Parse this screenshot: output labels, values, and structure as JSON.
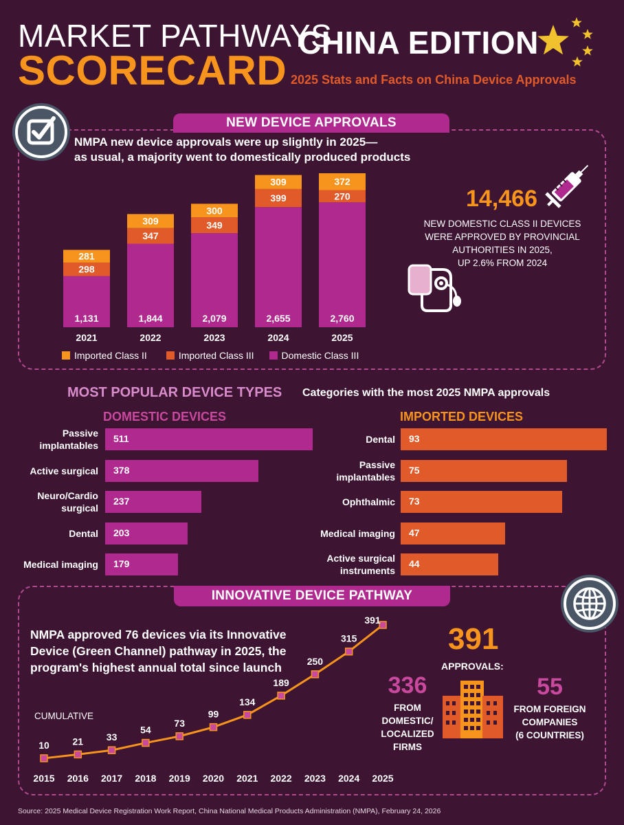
{
  "header": {
    "title_line1": "MARKET PATHWAYS",
    "title_line2": "SCORECARD",
    "edition": "CHINA EDITION",
    "subtitle": "2025 Stats and Facts on China Device Approvals"
  },
  "approvals_section": {
    "banner": "NEW DEVICE APPROVALS",
    "lead_line1": "NMPA new device approvals were up slightly in 2025—",
    "lead_line2": "as usual, a majority went to domestically produced products",
    "stat_value": "14,466",
    "stat_line1": "NEW DOMESTIC CLASS II DEVICES",
    "stat_line2": "WERE APPROVED BY PROVINCIAL",
    "stat_line3": "AUTHORITIES IN 2025,",
    "stat_line4": "UP 2.6% FROM 2024",
    "legend": [
      "Imported Class II",
      "Imported Class III",
      "Domestic Class III"
    ]
  },
  "popular_section": {
    "title": "MOST POPULAR DEVICE TYPES",
    "subtitle": "Categories with the most 2025 NMPA approvals",
    "domestic_header": "DOMESTIC DEVICES",
    "imported_header": "IMPORTED DEVICES"
  },
  "innovative_section": {
    "banner": "INNOVATIVE DEVICE PATHWAY",
    "lead_line1": "NMPA approved 76 devices via its Innovative",
    "lead_line2": "Device (Green Channel) pathway in 2025, the",
    "lead_line3": "program's highest annual total since launch",
    "cumulative_label": "CUMULATIVE",
    "total_value": "391",
    "total_label": "APPROVALS:",
    "domestic_value": "336",
    "domestic_line1": "FROM",
    "domestic_line2": "DOMESTIC/",
    "domestic_line3": "LOCALIZED",
    "domestic_line4": "FIRMS",
    "foreign_value": "55",
    "foreign_line1": "FROM FOREIGN",
    "foreign_line2": "COMPANIES",
    "foreign_line3": "(6 COUNTRIES)"
  },
  "source": "Source: 2025 Medical Device Registration Work Report, China National Medical Products Administration (NMPA), February 24, 2026",
  "colors": {
    "background": "#3d1432",
    "imported_class_ii": "#f7941d",
    "imported_class_iii": "#e05a2a",
    "domestic_class_iii": "#b0298f",
    "accent_pink": "#c9499e"
  },
  "chart_data": [
    {
      "type": "bar",
      "stacked": true,
      "title": "NEW DEVICE APPROVALS",
      "categories": [
        "2021",
        "2022",
        "2023",
        "2024",
        "2025"
      ],
      "series": [
        {
          "name": "Domestic Class III",
          "values": [
            1131,
            1844,
            2079,
            2655,
            2760
          ],
          "labels": [
            "1,131",
            "1,844",
            "2,079",
            "2,655",
            "2,760"
          ]
        },
        {
          "name": "Imported Class III",
          "values": [
            298,
            347,
            349,
            399,
            270
          ],
          "labels": [
            "298",
            "347",
            "349",
            "399",
            "270"
          ]
        },
        {
          "name": "Imported Class II",
          "values": [
            281,
            309,
            300,
            309,
            372
          ],
          "labels": [
            "281",
            "309",
            "300",
            "309",
            "372"
          ]
        }
      ],
      "ylim": [
        0,
        3402
      ],
      "legend": "bottom"
    },
    {
      "type": "bar",
      "orientation": "horizontal",
      "title": "DOMESTIC DEVICES",
      "categories": [
        [
          "Passive",
          "implantables"
        ],
        [
          "Active surgical"
        ],
        [
          "Neuro/Cardio",
          "surgical"
        ],
        [
          "Dental"
        ],
        [
          "Medical imaging"
        ]
      ],
      "values": [
        511,
        378,
        237,
        203,
        179
      ],
      "xlim": [
        0,
        511
      ]
    },
    {
      "type": "bar",
      "orientation": "horizontal",
      "title": "IMPORTED DEVICES",
      "categories": [
        [
          "Dental"
        ],
        [
          "Passive",
          "implantables"
        ],
        [
          "Ophthalmic"
        ],
        [
          "Medical imaging"
        ],
        [
          "Active surgical",
          "instruments"
        ]
      ],
      "values": [
        93,
        75,
        73,
        47,
        44
      ],
      "xlim": [
        0,
        93
      ]
    },
    {
      "type": "line",
      "title": "INNOVATIVE DEVICE PATHWAY",
      "ylabel": "CUMULATIVE",
      "x": [
        "2015",
        "2016",
        "2017",
        "2018",
        "2019",
        "2020",
        "2021",
        "2022",
        "2023",
        "2024",
        "2025"
      ],
      "values": [
        10,
        21,
        33,
        54,
        73,
        99,
        134,
        189,
        250,
        315,
        391
      ],
      "ylim": [
        0,
        391
      ]
    }
  ]
}
